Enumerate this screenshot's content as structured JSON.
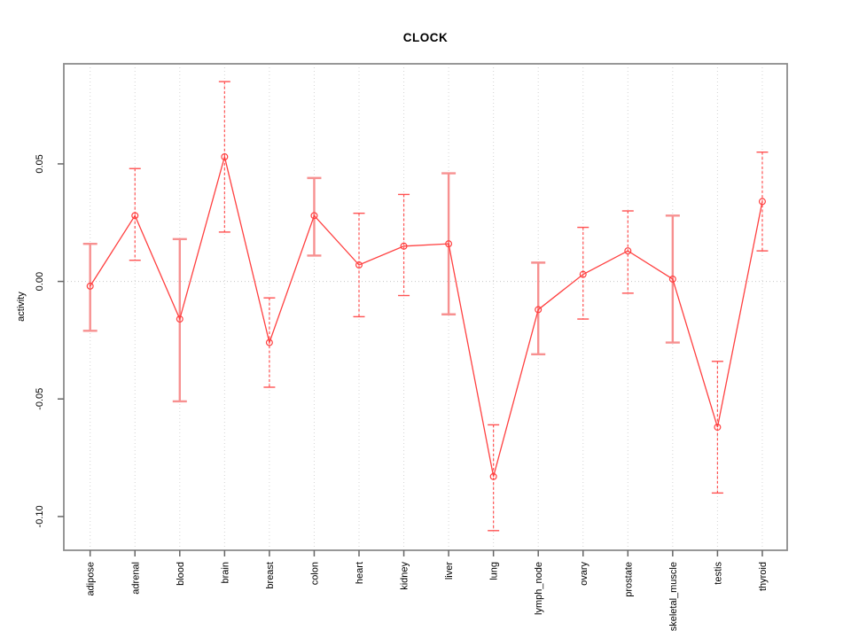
{
  "title": "CLOCK",
  "axes": {
    "y_label": "activity",
    "y_tick_labels": [
      "0.05",
      "0.00",
      "-0.05",
      "-0.10"
    ]
  },
  "chart_data": {
    "type": "line",
    "subtype": "means-with-error-bars",
    "title": "CLOCK",
    "xlabel": "",
    "ylabel": "activity",
    "categories": [
      "adipose",
      "adrenal",
      "blood",
      "brain",
      "breast",
      "colon",
      "heart",
      "kidney",
      "liver",
      "lung",
      "lymph_node",
      "ovary",
      "prostate",
      "skeletal_muscle",
      "testis",
      "thyroid"
    ],
    "series": [
      {
        "name": "activity",
        "values": [
          -0.002,
          0.028,
          -0.016,
          0.053,
          -0.026,
          0.028,
          0.007,
          0.015,
          0.016,
          -0.083,
          -0.012,
          0.003,
          0.013,
          0.001,
          -0.062,
          0.034
        ],
        "error_low": [
          -0.021,
          0.009,
          -0.051,
          0.021,
          -0.045,
          0.011,
          -0.015,
          -0.006,
          -0.014,
          -0.106,
          -0.031,
          -0.016,
          -0.005,
          -0.026,
          -0.09,
          0.013
        ],
        "error_high": [
          0.016,
          0.048,
          0.018,
          0.085,
          -0.007,
          0.044,
          0.029,
          0.037,
          0.046,
          -0.061,
          0.008,
          0.023,
          0.03,
          0.028,
          -0.034,
          0.055
        ],
        "error_bar_styles": [
          "solid",
          "dashed",
          "solid",
          "dashed",
          "dashed",
          "solid",
          "dashed",
          "dashed",
          "solid",
          "dashed",
          "solid",
          "dashed",
          "dashed",
          "solid",
          "dashed",
          "dashed"
        ]
      }
    ],
    "yticks": [
      0.05,
      0.0,
      -0.05,
      -0.1
    ],
    "ytick_labels": [
      "0.05",
      "0.00",
      "-0.05",
      "-0.10"
    ],
    "ylim": [
      -0.114,
      0.093
    ],
    "zero_reference_line": true,
    "vertical_gridlines": true,
    "legend": "none",
    "marker": "open-circle",
    "colors": {
      "line": "#ff4040",
      "marker": "#ff4040",
      "error_bar_solid": "#f79090",
      "error_bar_dashed": "#ff5252",
      "gridline": "#d4d4d4",
      "zero_line": "#c8c8c8",
      "frame": "#8c8c8c",
      "tick": "#666666",
      "text": "#000000"
    }
  }
}
